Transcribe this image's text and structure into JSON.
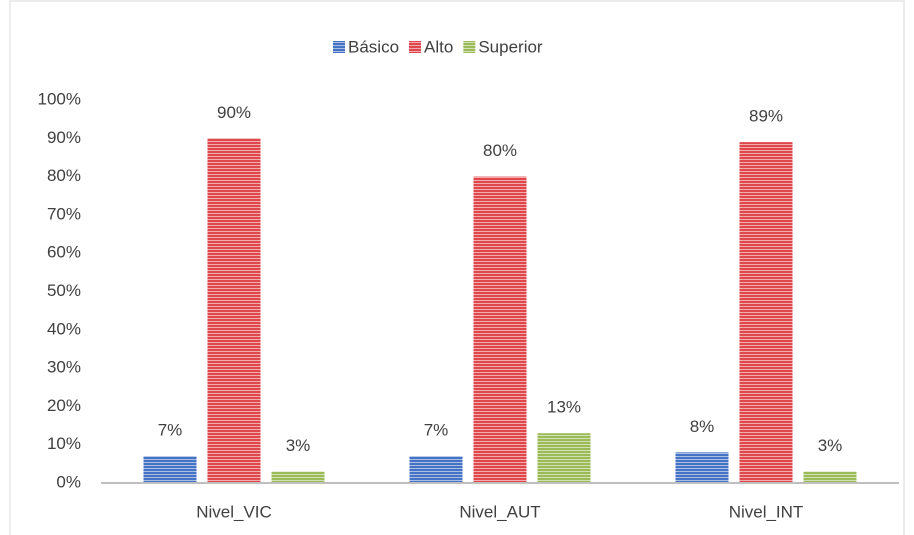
{
  "chart_data": {
    "type": "bar",
    "categories": [
      "Nivel_VIC",
      "Nivel_AUT",
      "Nivel_INT"
    ],
    "series": [
      {
        "name": "Básico",
        "color": "#4472c4",
        "values": [
          7,
          7,
          8
        ],
        "value_labels": [
          "7%",
          "7%",
          "8%"
        ]
      },
      {
        "name": "Alto",
        "color": "#e0474c",
        "values": [
          90,
          80,
          89
        ],
        "value_labels": [
          "90%",
          "80%",
          "89%"
        ]
      },
      {
        "name": "Superior",
        "color": "#9bbb59",
        "values": [
          3,
          13,
          3
        ],
        "value_labels": [
          "3%",
          "13%",
          "3%"
        ]
      }
    ],
    "ylim": [
      0,
      100
    ],
    "yticks": [
      {
        "value": 0,
        "label": "0%"
      },
      {
        "value": 10,
        "label": "10%"
      },
      {
        "value": 20,
        "label": "20%"
      },
      {
        "value": 30,
        "label": "30%"
      },
      {
        "value": 40,
        "label": "40%"
      },
      {
        "value": 50,
        "label": "50%"
      },
      {
        "value": 60,
        "label": "60%"
      },
      {
        "value": 70,
        "label": "70%"
      },
      {
        "value": 80,
        "label": "80%"
      },
      {
        "value": 90,
        "label": "90%"
      },
      {
        "value": 100,
        "label": "100%"
      }
    ],
    "grid": false,
    "legend": "top"
  }
}
